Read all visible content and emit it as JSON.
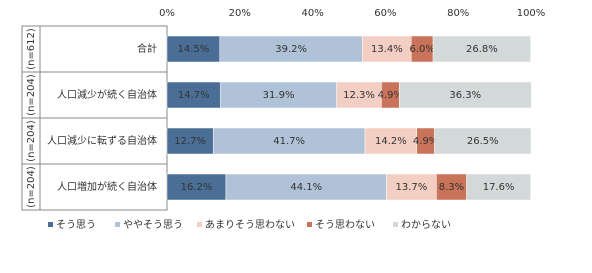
{
  "chart_data": {
    "type": "stacked-bar-horizontal",
    "categories": [
      "合計",
      "人口減少が続く自治体",
      "人口減少に転ずる自治体",
      "人口増加が続く自治体"
    ],
    "sample_sizes": [
      "(n=612)",
      "(n=204)",
      "(n=204)",
      "(n=204)"
    ],
    "series": [
      {
        "name": "そう思う",
        "color": "#4a6e96",
        "values": [
          14.5,
          14.7,
          12.7,
          16.2
        ],
        "value_labels": [
          "14.5%",
          "14.7%",
          "12.7%",
          "16.2%"
        ]
      },
      {
        "name": "ややそう思う",
        "color": "#b0c2d8",
        "values": [
          39.2,
          31.9,
          41.7,
          44.1
        ],
        "value_labels": [
          "39.2%",
          "31.9%",
          "41.7%",
          "44.1%"
        ]
      },
      {
        "name": "あまりそう思わない",
        "color": "#f2cfc2",
        "values": [
          13.4,
          12.3,
          14.2,
          13.7
        ],
        "value_labels": [
          "13.4%",
          "12.3%",
          "14.2%",
          "13.7%"
        ]
      },
      {
        "name": "そう思わない",
        "color": "#c9735a",
        "values": [
          6.0,
          4.9,
          4.9,
          8.3
        ],
        "value_labels": [
          "6.0%",
          "4.9%",
          "4.9%",
          "8.3%"
        ]
      },
      {
        "name": "わからない",
        "color": "#d3d9d9",
        "values": [
          26.8,
          36.3,
          26.5,
          17.6
        ],
        "value_labels": [
          "26.8%",
          "36.3%",
          "26.5%",
          "17.6%"
        ]
      }
    ],
    "xlim": [
      0,
      100
    ],
    "xticks": [
      {
        "value": 0,
        "label": "0%"
      },
      {
        "value": 20,
        "label": "20%"
      },
      {
        "value": 40,
        "label": "40%"
      },
      {
        "value": 60,
        "label": "60%"
      },
      {
        "value": 80,
        "label": "80%"
      },
      {
        "value": 100,
        "label": "100%"
      }
    ],
    "legend": "bottom"
  }
}
